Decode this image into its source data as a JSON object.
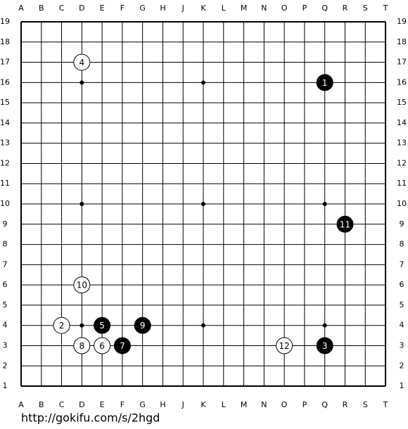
{
  "board": {
    "columns": [
      "A",
      "B",
      "C",
      "D",
      "E",
      "F",
      "G",
      "H",
      "J",
      "K",
      "L",
      "M",
      "N",
      "O",
      "P",
      "Q",
      "R",
      "S",
      "T"
    ],
    "rows": [
      19,
      18,
      17,
      16,
      15,
      14,
      13,
      12,
      11,
      10,
      9,
      8,
      7,
      6,
      5,
      4,
      3,
      2,
      1
    ],
    "stones": [
      {
        "move": 1,
        "color": "black",
        "col": "Q",
        "row": 16
      },
      {
        "move": 2,
        "color": "white",
        "col": "C",
        "row": 4
      },
      {
        "move": 3,
        "color": "black",
        "col": "Q",
        "row": 3
      },
      {
        "move": 4,
        "color": "white",
        "col": "D",
        "row": 17
      },
      {
        "move": 5,
        "color": "black",
        "col": "E",
        "row": 4
      },
      {
        "move": 6,
        "color": "white",
        "col": "E",
        "row": 3
      },
      {
        "move": 7,
        "color": "black",
        "col": "F",
        "row": 3
      },
      {
        "move": 8,
        "color": "white",
        "col": "D",
        "row": 3
      },
      {
        "move": 9,
        "color": "black",
        "col": "G",
        "row": 4
      },
      {
        "move": 10,
        "color": "white",
        "col": "D",
        "row": 6
      },
      {
        "move": 11,
        "color": "black",
        "col": "R",
        "row": 9
      },
      {
        "move": 12,
        "color": "white",
        "col": "O",
        "row": 3
      }
    ]
  },
  "footer": {
    "url": "http://gokifu.com/s/2hgd"
  }
}
